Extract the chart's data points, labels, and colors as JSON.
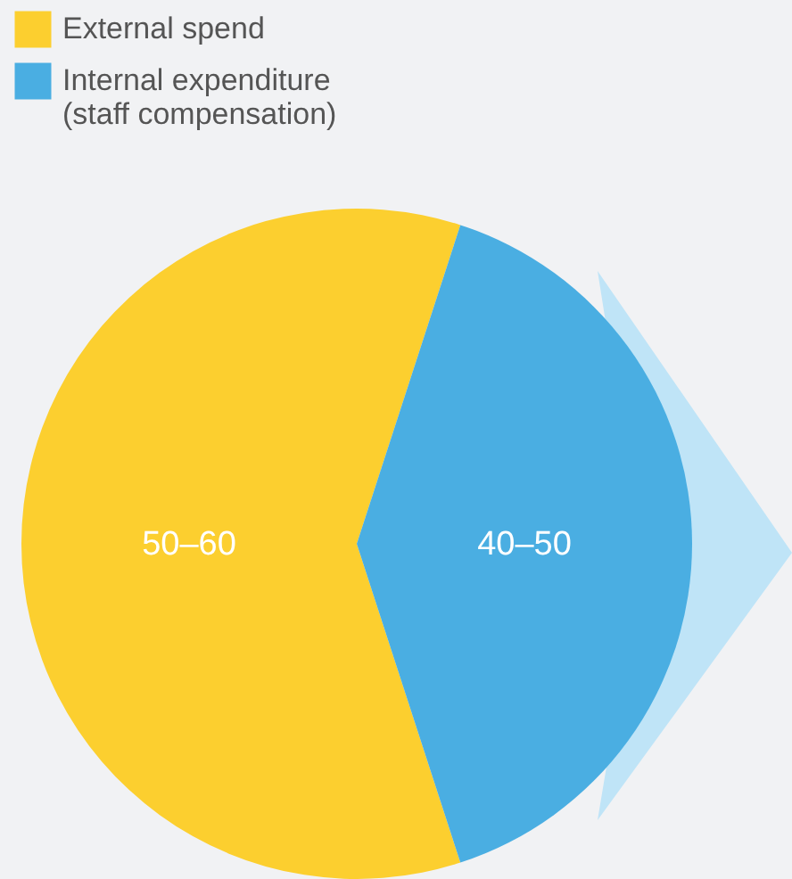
{
  "chart_data": {
    "type": "pie",
    "categories": [
      "External spend",
      "Internal expenditure (staff compensation)"
    ],
    "values": [
      60,
      40
    ],
    "colors": [
      "#fccf2f",
      "#4aaee2"
    ],
    "value_labels": [
      "50–60",
      "40–50"
    ],
    "legend": "top left"
  }
}
